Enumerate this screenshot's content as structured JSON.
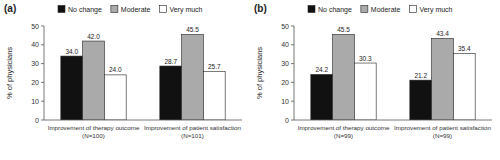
{
  "chart_data": [
    {
      "type": "bar",
      "title": "(a)",
      "categories": [
        "Improvement of therapy outcome\n(N=100)",
        "Improvement of patient satisfaction\n(N=101)"
      ],
      "series": [
        {
          "name": "No change",
          "color": "#111111",
          "values": [
            34.0,
            28.7
          ],
          "value_labels": [
            "34.0",
            "28.7"
          ]
        },
        {
          "name": "Moderate",
          "color": "#aaaaaa",
          "values": [
            42.0,
            45.5
          ],
          "value_labels": [
            "42.0",
            "45.5"
          ]
        },
        {
          "name": "Very much",
          "color": "#ffffff",
          "values": [
            24.0,
            25.7
          ],
          "value_labels": [
            "24.0",
            "25.7"
          ]
        }
      ],
      "ylabel": "% of physicians",
      "ylim": [
        0,
        50
      ],
      "yticks": [
        0,
        10,
        20,
        30,
        40,
        50
      ],
      "grid": false,
      "legend": "top",
      "data_labels": true
    },
    {
      "type": "bar",
      "title": "(b)",
      "categories": [
        "Improvement of therapy outcome\n(N=99)",
        "Improvement of patient satisfaction\n(N=99)"
      ],
      "series": [
        {
          "name": "No change",
          "color": "#111111",
          "values": [
            24.2,
            21.2
          ],
          "value_labels": [
            "24.2",
            "21.2"
          ]
        },
        {
          "name": "Moderate",
          "color": "#aaaaaa",
          "values": [
            45.5,
            43.4
          ],
          "value_labels": [
            "45.5",
            "43.4"
          ]
        },
        {
          "name": "Very much",
          "color": "#ffffff",
          "values": [
            30.3,
            35.4
          ],
          "value_labels": [
            "30.3",
            "35.4"
          ]
        }
      ],
      "ylabel": "% of physicians",
      "ylim": [
        0,
        50
      ],
      "yticks": [
        0,
        10,
        20,
        30,
        40,
        50
      ],
      "grid": false,
      "legend": "top",
      "data_labels": true
    }
  ]
}
